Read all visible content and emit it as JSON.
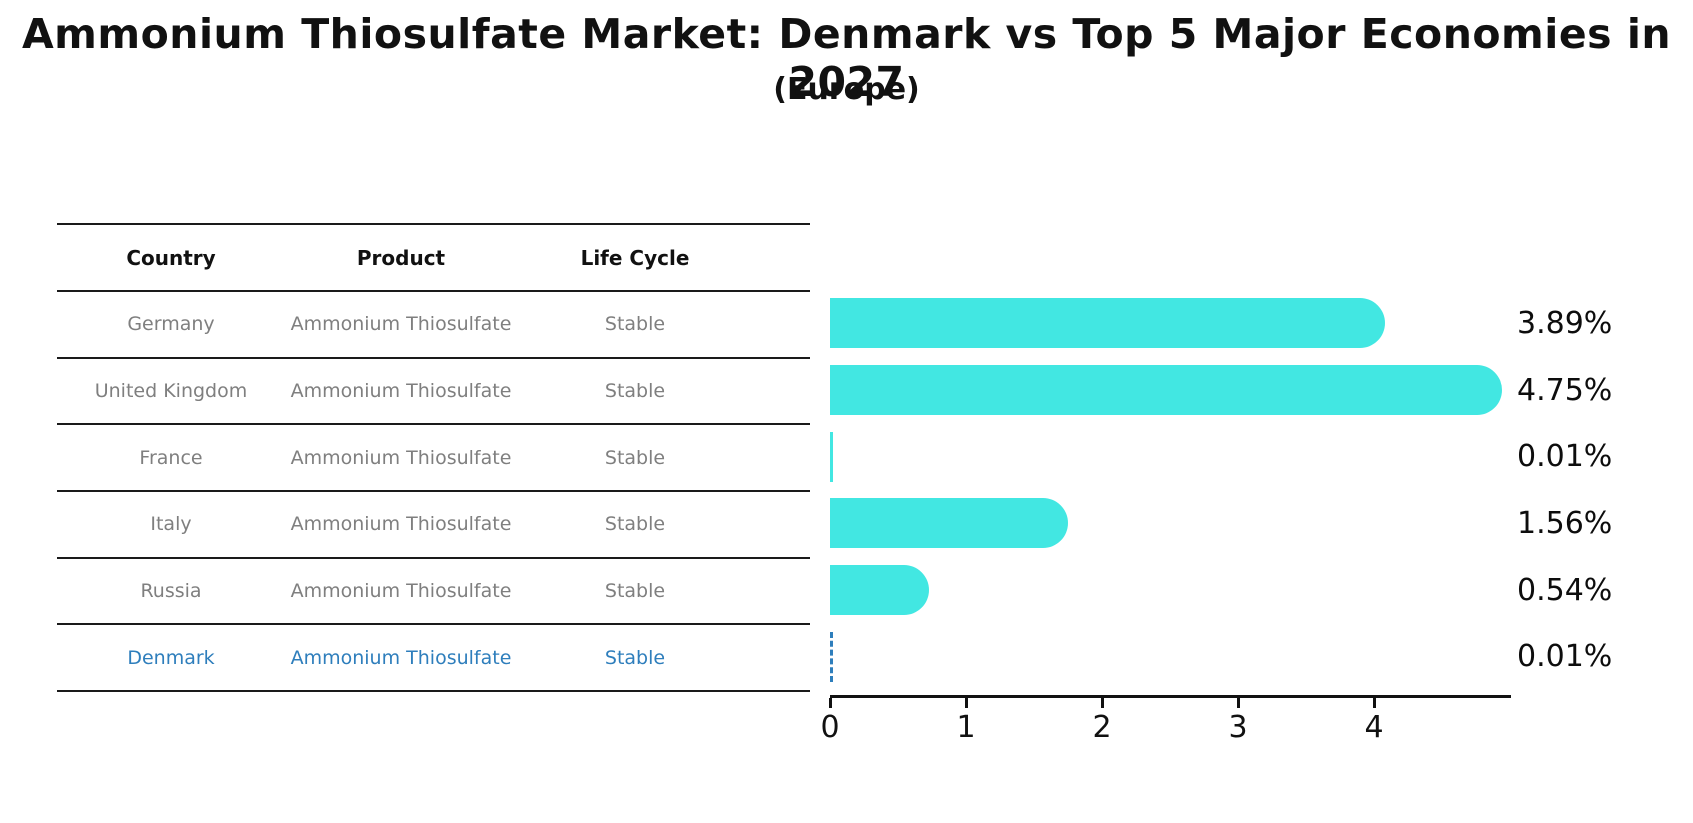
{
  "title": "Ammonium Thiosulfate Market: Denmark vs Top 5 Major Economies in 2027",
  "subtitle": "(Europe)",
  "table": {
    "headers": [
      "Country",
      "Product",
      "Life Cycle"
    ],
    "rows": [
      {
        "country": "Germany",
        "product": "Ammonium Thiosulfate",
        "life_cycle": "Stable",
        "highlighted": false
      },
      {
        "country": "United Kingdom",
        "product": "Ammonium Thiosulfate",
        "life_cycle": "Stable",
        "highlighted": false
      },
      {
        "country": "France",
        "product": "Ammonium Thiosulfate",
        "life_cycle": "Stable",
        "highlighted": false
      },
      {
        "country": "Italy",
        "product": "Ammonium Thiosulfate",
        "life_cycle": "Stable",
        "highlighted": false
      },
      {
        "country": "Russia",
        "product": "Ammonium Thiosulfate",
        "life_cycle": "Stable",
        "highlighted": false
      },
      {
        "country": "Denmark",
        "product": "Ammonium Thiosulfate",
        "life_cycle": "Stable",
        "highlighted": true
      }
    ]
  },
  "chart_data": {
    "type": "bar",
    "orientation": "horizontal",
    "title": "Ammonium Thiosulfate Market: Denmark vs Top 5 Major Economies in 2027",
    "subtitle": "(Europe)",
    "categories": [
      "Germany",
      "United Kingdom",
      "France",
      "Italy",
      "Russia",
      "Denmark"
    ],
    "values": [
      3.89,
      4.75,
      0.01,
      1.56,
      0.54,
      0.01
    ],
    "value_labels": [
      "3.89%",
      "4.75%",
      "0.01%",
      "1.56%",
      "0.54%",
      "0.01%"
    ],
    "highlight_index": 5,
    "x_ticks": [
      "0",
      "1",
      "2",
      "3",
      "4"
    ],
    "xlim": [
      0,
      5
    ],
    "xlabel": "",
    "ylabel": "",
    "grid": false,
    "legend": false,
    "bar_color": "#42e7e2",
    "highlight_color": "#2e7ebc",
    "highlight_style": "dashed-outline"
  },
  "colors": {
    "bar": "#42e7e2",
    "highlight_blue": "#2e7ebc",
    "row_text_gray": "#7f7f7f",
    "text_black": "#111111",
    "background": "#ffffff"
  }
}
